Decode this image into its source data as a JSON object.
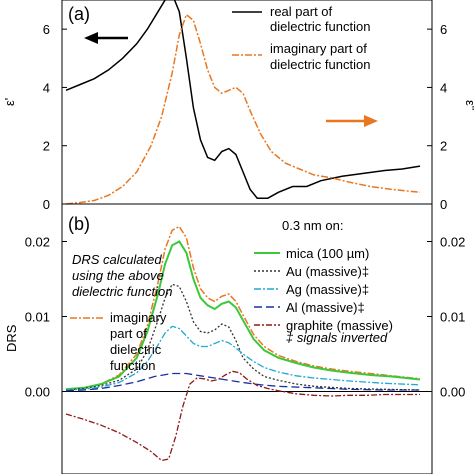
{
  "chart_data": [
    {
      "panel": "(a)",
      "type": "line",
      "ylabel_left": "ε'",
      "ylabel_right": "ε\"",
      "ylim": [
        0,
        7
      ],
      "yticks": [
        "0",
        "2",
        "4",
        "6"
      ],
      "legend_position": "top-right",
      "grid": false,
      "series": [
        {
          "name_line1": "real part of",
          "name_line2": "dielectric function",
          "color": "#000000",
          "dash": "",
          "axis": "left",
          "points": [
            [
              0,
              3.9
            ],
            [
              0.04,
              4.1
            ],
            [
              0.08,
              4.3
            ],
            [
              0.12,
              4.6
            ],
            [
              0.16,
              5.0
            ],
            [
              0.2,
              5.5
            ],
            [
              0.23,
              6.0
            ],
            [
              0.26,
              6.6
            ],
            [
              0.28,
              7.0
            ],
            [
              0.3,
              7.2
            ],
            [
              0.32,
              6.6
            ],
            [
              0.34,
              5.0
            ],
            [
              0.36,
              3.3
            ],
            [
              0.38,
              2.2
            ],
            [
              0.4,
              1.6
            ],
            [
              0.42,
              1.5
            ],
            [
              0.44,
              1.8
            ],
            [
              0.46,
              1.9
            ],
            [
              0.48,
              1.7
            ],
            [
              0.5,
              1.1
            ],
            [
              0.52,
              0.5
            ],
            [
              0.54,
              0.2
            ],
            [
              0.57,
              0.2
            ],
            [
              0.6,
              0.4
            ],
            [
              0.64,
              0.6
            ],
            [
              0.68,
              0.6
            ],
            [
              0.72,
              0.8
            ],
            [
              0.78,
              0.95
            ],
            [
              0.84,
              1.05
            ],
            [
              0.9,
              1.15
            ],
            [
              0.95,
              1.2
            ],
            [
              1.0,
              1.3
            ]
          ]
        },
        {
          "name_line1": "imaginary part of",
          "name_line2": "dielectric function",
          "color": "#e87722",
          "dash": "7,2,2,2",
          "axis": "right",
          "points": [
            [
              0,
              0
            ],
            [
              0.04,
              0.05
            ],
            [
              0.08,
              0.12
            ],
            [
              0.12,
              0.3
            ],
            [
              0.16,
              0.6
            ],
            [
              0.2,
              1.1
            ],
            [
              0.24,
              2.0
            ],
            [
              0.27,
              3.0
            ],
            [
              0.3,
              4.5
            ],
            [
              0.32,
              5.8
            ],
            [
              0.34,
              6.5
            ],
            [
              0.36,
              6.3
            ],
            [
              0.38,
              5.5
            ],
            [
              0.4,
              4.6
            ],
            [
              0.42,
              4.0
            ],
            [
              0.44,
              3.8
            ],
            [
              0.46,
              3.9
            ],
            [
              0.48,
              4.0
            ],
            [
              0.5,
              3.8
            ],
            [
              0.52,
              3.2
            ],
            [
              0.55,
              2.4
            ],
            [
              0.58,
              1.8
            ],
            [
              0.62,
              1.4
            ],
            [
              0.66,
              1.2
            ],
            [
              0.7,
              1.0
            ],
            [
              0.75,
              0.9
            ],
            [
              0.8,
              0.75
            ],
            [
              0.86,
              0.6
            ],
            [
              0.92,
              0.5
            ],
            [
              1.0,
              0.4
            ]
          ]
        }
      ]
    },
    {
      "panel": "(b)",
      "type": "line",
      "ylabel_left": "DRS",
      "ylim": [
        -0.011,
        0.025
      ],
      "yticks": [
        "0.00",
        "0.01",
        "0.02"
      ],
      "title_line": "0.3 nm on:",
      "note_line1": "DRS calculated",
      "note_line2": "using the above",
      "note_line3": "dielectric function",
      "ref_line1": "imaginary",
      "ref_line2": "part of",
      "ref_line3": "dielectric",
      "ref_line4": "function",
      "footnote": "‡ signals inverted",
      "legend_position": "top-right",
      "grid": false,
      "series": [
        {
          "name": "mica (100 µm)",
          "color": "#3cc83c",
          "dash": "",
          "points": [
            [
              0,
              0.0003
            ],
            [
              0.05,
              0.0005
            ],
            [
              0.1,
              0.001
            ],
            [
              0.15,
              0.002
            ],
            [
              0.2,
              0.0045
            ],
            [
              0.23,
              0.008
            ],
            [
              0.26,
              0.013
            ],
            [
              0.28,
              0.017
            ],
            [
              0.3,
              0.0195
            ],
            [
              0.32,
              0.02
            ],
            [
              0.34,
              0.0185
            ],
            [
              0.36,
              0.015
            ],
            [
              0.38,
              0.0125
            ],
            [
              0.4,
              0.0115
            ],
            [
              0.42,
              0.011
            ],
            [
              0.44,
              0.0117
            ],
            [
              0.46,
              0.012
            ],
            [
              0.48,
              0.0112
            ],
            [
              0.5,
              0.0095
            ],
            [
              0.53,
              0.007
            ],
            [
              0.56,
              0.0055
            ],
            [
              0.6,
              0.0045
            ],
            [
              0.65,
              0.0038
            ],
            [
              0.7,
              0.0032
            ],
            [
              0.75,
              0.0028
            ],
            [
              0.8,
              0.0025
            ],
            [
              0.86,
              0.0022
            ],
            [
              0.92,
              0.002
            ],
            [
              1.0,
              0.0016
            ]
          ]
        },
        {
          "name": "Au (massive)‡",
          "color": "#333333",
          "dash": "2,2",
          "points": [
            [
              0,
              0.0002
            ],
            [
              0.05,
              0.0004
            ],
            [
              0.1,
              0.0008
            ],
            [
              0.15,
              0.0015
            ],
            [
              0.2,
              0.003
            ],
            [
              0.23,
              0.0055
            ],
            [
              0.26,
              0.0095
            ],
            [
              0.28,
              0.0125
            ],
            [
              0.3,
              0.0143
            ],
            [
              0.32,
              0.014
            ],
            [
              0.34,
              0.012
            ],
            [
              0.36,
              0.0093
            ],
            [
              0.38,
              0.008
            ],
            [
              0.4,
              0.0078
            ],
            [
              0.42,
              0.0082
            ],
            [
              0.44,
              0.009
            ],
            [
              0.46,
              0.0086
            ],
            [
              0.48,
              0.0068
            ],
            [
              0.5,
              0.0045
            ],
            [
              0.53,
              0.003
            ],
            [
              0.56,
              0.002
            ],
            [
              0.6,
              0.0015
            ],
            [
              0.65,
              0.001
            ],
            [
              0.7,
              0.0007
            ],
            [
              0.8,
              0.0004
            ],
            [
              0.9,
              0.0003
            ],
            [
              1.0,
              0.0002
            ]
          ]
        },
        {
          "name": "Ag (massive)‡",
          "color": "#1eaad2",
          "dash": "7,2,2,2",
          "points": [
            [
              0,
              0.0002
            ],
            [
              0.05,
              0.0003
            ],
            [
              0.1,
              0.0006
            ],
            [
              0.15,
              0.0012
            ],
            [
              0.2,
              0.0025
            ],
            [
              0.23,
              0.004
            ],
            [
              0.26,
              0.0062
            ],
            [
              0.28,
              0.0078
            ],
            [
              0.3,
              0.0087
            ],
            [
              0.32,
              0.0084
            ],
            [
              0.34,
              0.0074
            ],
            [
              0.36,
              0.0064
            ],
            [
              0.38,
              0.006
            ],
            [
              0.4,
              0.006
            ],
            [
              0.42,
              0.0064
            ],
            [
              0.44,
              0.0068
            ],
            [
              0.46,
              0.0065
            ],
            [
              0.48,
              0.0058
            ],
            [
              0.5,
              0.005
            ],
            [
              0.53,
              0.004
            ],
            [
              0.56,
              0.0032
            ],
            [
              0.6,
              0.0026
            ],
            [
              0.65,
              0.0021
            ],
            [
              0.7,
              0.0018
            ],
            [
              0.8,
              0.0014
            ],
            [
              0.9,
              0.0011
            ],
            [
              1.0,
              0.0009
            ]
          ]
        },
        {
          "name": "Al (massive)‡",
          "color": "#1a2fa0",
          "dash": "8,4",
          "points": [
            [
              0,
              0.0001
            ],
            [
              0.05,
              0.0002
            ],
            [
              0.1,
              0.0004
            ],
            [
              0.15,
              0.0008
            ],
            [
              0.2,
              0.0013
            ],
            [
              0.25,
              0.002
            ],
            [
              0.3,
              0.0024
            ],
            [
              0.34,
              0.0024
            ],
            [
              0.38,
              0.0021
            ],
            [
              0.42,
              0.0018
            ],
            [
              0.46,
              0.0015
            ],
            [
              0.5,
              0.0012
            ],
            [
              0.55,
              0.0009
            ],
            [
              0.6,
              0.0007
            ],
            [
              0.7,
              0.0005
            ],
            [
              0.8,
              0.0003
            ],
            [
              0.9,
              0.0002
            ],
            [
              1.0,
              0.0002
            ]
          ]
        },
        {
          "name": "graphite (massive)",
          "color": "#8b1a1a",
          "dash": "6,2,2,2",
          "points": [
            [
              0,
              -0.003
            ],
            [
              0.05,
              -0.0037
            ],
            [
              0.1,
              -0.0045
            ],
            [
              0.15,
              -0.0055
            ],
            [
              0.2,
              -0.0068
            ],
            [
              0.24,
              -0.008
            ],
            [
              0.27,
              -0.0092
            ],
            [
              0.29,
              -0.009
            ],
            [
              0.31,
              -0.006
            ],
            [
              0.33,
              -0.002
            ],
            [
              0.35,
              0.001
            ],
            [
              0.37,
              0.0018
            ],
            [
              0.39,
              0.0017
            ],
            [
              0.41,
              0.0014
            ],
            [
              0.43,
              0.0016
            ],
            [
              0.45,
              0.0022
            ],
            [
              0.47,
              0.0027
            ],
            [
              0.49,
              0.0025
            ],
            [
              0.51,
              0.0017
            ],
            [
              0.54,
              0.0008
            ],
            [
              0.57,
              0.0004
            ],
            [
              0.6,
              0.0001
            ],
            [
              0.65,
              -0.0003
            ],
            [
              0.7,
              -0.0005
            ],
            [
              0.75,
              -0.0006
            ],
            [
              0.8,
              -0.0005
            ],
            [
              0.85,
              -0.0005
            ],
            [
              0.9,
              -0.0004
            ],
            [
              0.95,
              -0.0004
            ],
            [
              1.0,
              -0.0004
            ]
          ]
        }
      ],
      "reference_series": {
        "color": "#e87722",
        "dash": "7,2,2,2",
        "points": [
          [
            0,
            0.0003
          ],
          [
            0.05,
            0.0005
          ],
          [
            0.1,
            0.001
          ],
          [
            0.15,
            0.0022
          ],
          [
            0.2,
            0.005
          ],
          [
            0.23,
            0.0088
          ],
          [
            0.26,
            0.0145
          ],
          [
            0.28,
            0.019
          ],
          [
            0.3,
            0.0215
          ],
          [
            0.32,
            0.022
          ],
          [
            0.34,
            0.0205
          ],
          [
            0.36,
            0.0165
          ],
          [
            0.38,
            0.0137
          ],
          [
            0.4,
            0.0125
          ],
          [
            0.42,
            0.012
          ],
          [
            0.44,
            0.0127
          ],
          [
            0.46,
            0.013
          ],
          [
            0.48,
            0.012
          ],
          [
            0.5,
            0.0102
          ],
          [
            0.53,
            0.0076
          ],
          [
            0.56,
            0.006
          ],
          [
            0.6,
            0.0048
          ],
          [
            0.65,
            0.004
          ],
          [
            0.7,
            0.0034
          ],
          [
            0.75,
            0.003
          ],
          [
            0.8,
            0.0027
          ],
          [
            0.86,
            0.0024
          ],
          [
            0.92,
            0.0021
          ],
          [
            1.0,
            0.0017
          ]
        ]
      }
    }
  ]
}
